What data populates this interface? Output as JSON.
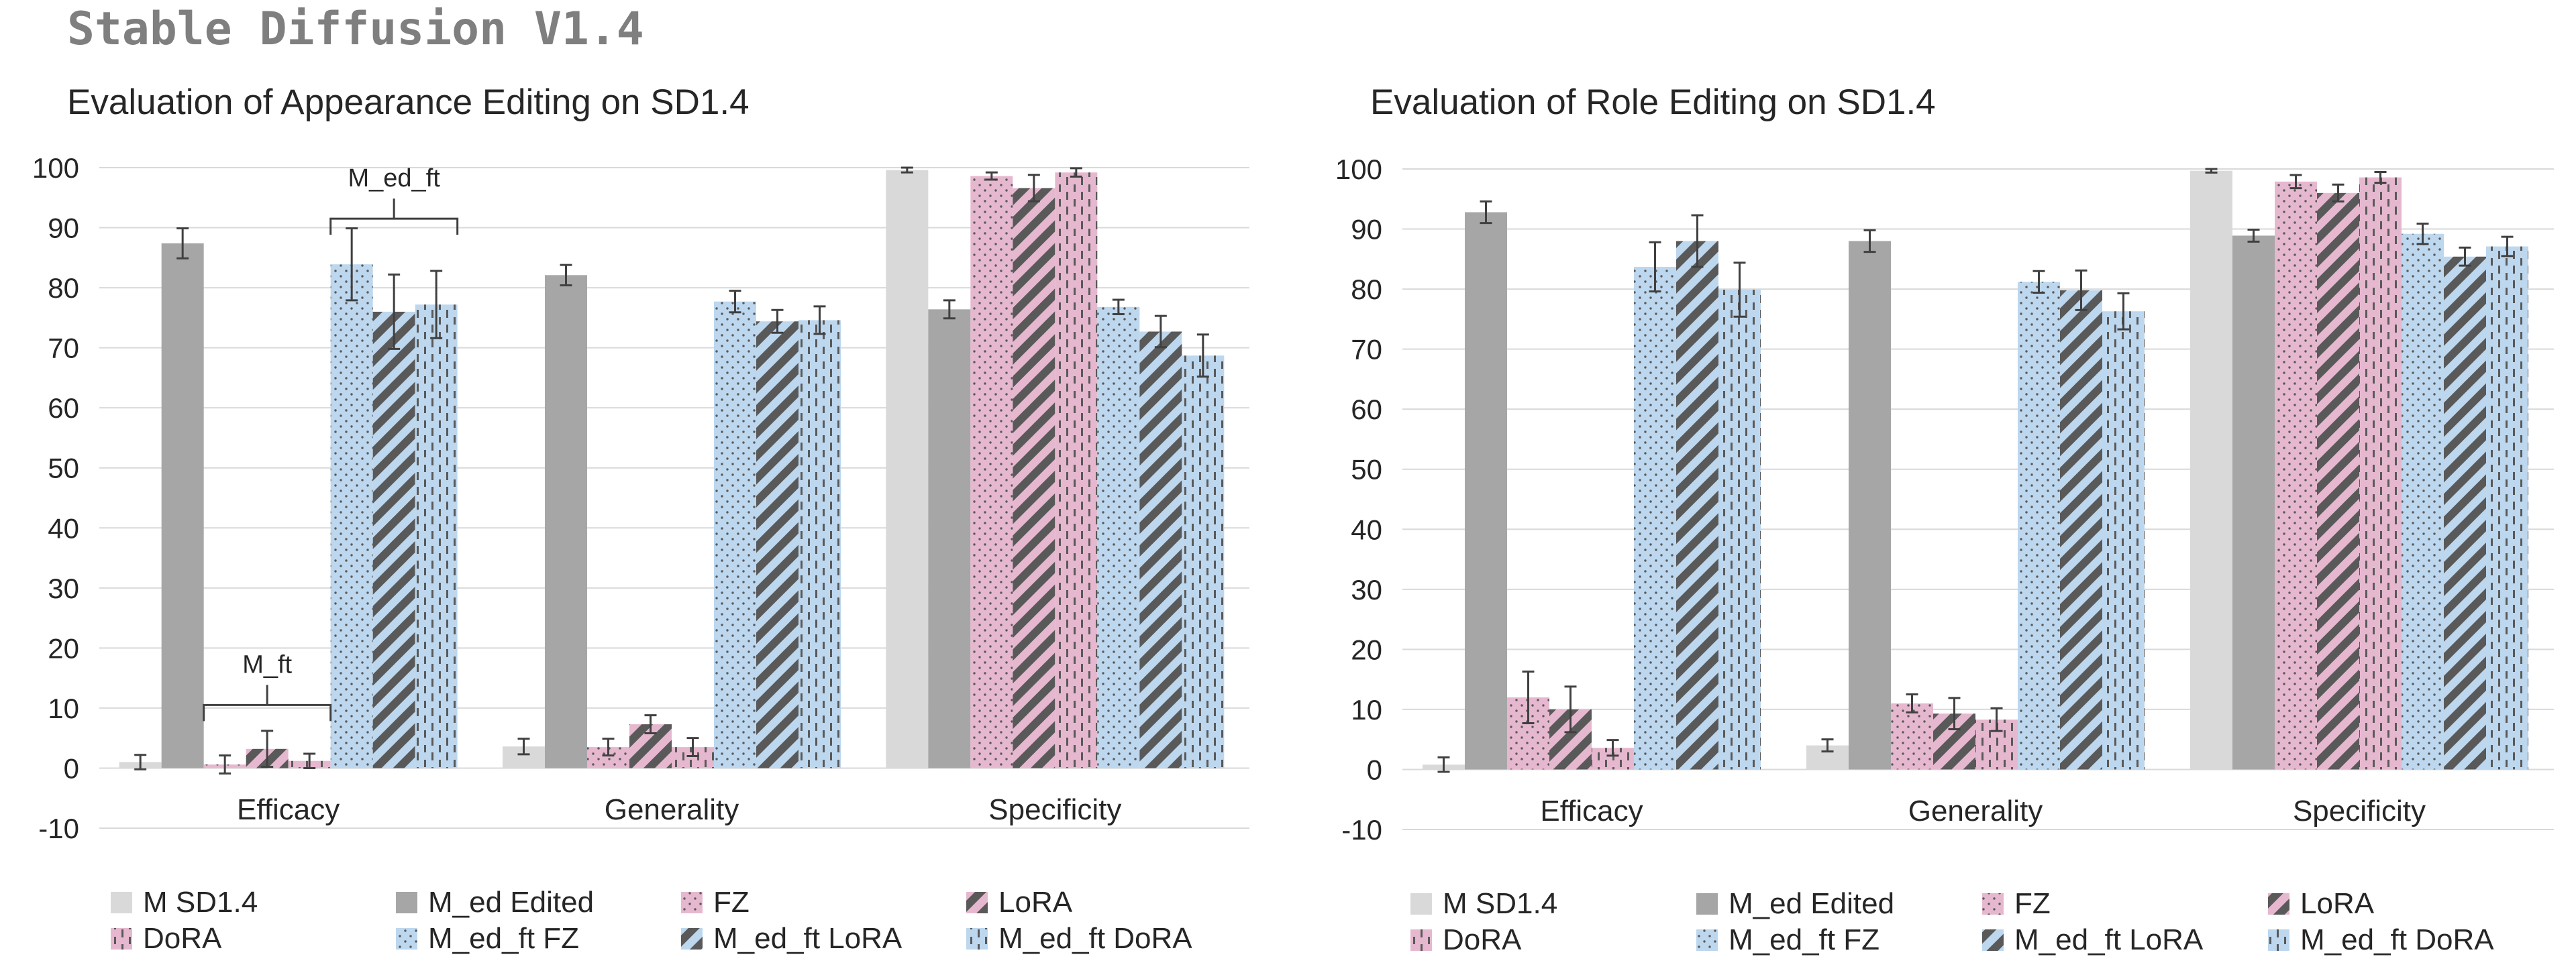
{
  "heading": "Stable Diffusion V1.4",
  "colors": {
    "msd": "#d9d9d9",
    "edited": "#a6a6a6",
    "pink": "#e6b8cf",
    "blue": "#bdd7ee",
    "pattern": "#595959",
    "grid": "#d9d9d9",
    "errbar": "#404040"
  },
  "chart_data": [
    {
      "type": "bar",
      "title": "Evaluation of Appearance Editing on SD1.4",
      "categories": [
        "Efficacy",
        "Generality",
        "Specificity"
      ],
      "ylim": [
        -10,
        100
      ],
      "yticks": [
        "100",
        "90",
        "80",
        "70",
        "60",
        "50",
        "40",
        "30",
        "20",
        "10",
        "0",
        "-10"
      ],
      "series": [
        {
          "name": "M SD1.4",
          "fill": "msd",
          "pattern": "none",
          "values": [
            1.0,
            3.6,
            99.6
          ],
          "errors": [
            1.2,
            1.3,
            0.4
          ]
        },
        {
          "name": "M_ed Edited",
          "fill": "edited",
          "pattern": "none",
          "values": [
            87.4,
            82.1,
            76.4
          ],
          "errors": [
            2.5,
            1.7,
            1.5
          ]
        },
        {
          "name": "FZ",
          "fill": "pink",
          "pattern": "dots",
          "values": [
            0.6,
            3.5,
            98.6
          ],
          "errors": [
            1.5,
            1.4,
            0.6
          ]
        },
        {
          "name": "LoRA",
          "fill": "pink",
          "pattern": "diag",
          "values": [
            3.2,
            7.3,
            96.6
          ],
          "errors": [
            3.0,
            1.5,
            2.2
          ]
        },
        {
          "name": "DoRA",
          "fill": "pink",
          "pattern": "dash",
          "values": [
            1.2,
            3.5,
            99.2
          ],
          "errors": [
            1.2,
            1.5,
            0.7
          ]
        },
        {
          "name": "M_ed_ft FZ",
          "fill": "blue",
          "pattern": "dots",
          "values": [
            83.9,
            77.7,
            76.8
          ],
          "errors": [
            6.0,
            1.8,
            1.2
          ]
        },
        {
          "name": "M_ed_ft LoRA",
          "fill": "blue",
          "pattern": "diag",
          "values": [
            76.0,
            74.4,
            72.7
          ],
          "errors": [
            6.2,
            1.9,
            2.6
          ]
        },
        {
          "name": "M_ed_ft DoRA",
          "fill": "blue",
          "pattern": "dash",
          "values": [
            77.2,
            74.6,
            68.7
          ],
          "errors": [
            5.6,
            2.3,
            3.5
          ]
        }
      ],
      "annotations": [
        {
          "label": "M_ft",
          "category": "Efficacy",
          "from_series": 2,
          "to_series": 4,
          "level": 10.5
        },
        {
          "label": "M_ed_ft",
          "category": "Efficacy",
          "from_series": 5,
          "to_series": 7,
          "level": 91.5
        }
      ],
      "legend": [
        "M SD1.4",
        "M_ed Edited",
        "FZ",
        "LoRA",
        "DoRA",
        "M_ed_ft FZ",
        "M_ed_ft LoRA",
        "M_ed_ft DoRA"
      ],
      "legend_position": "bottom"
    },
    {
      "type": "bar",
      "title": "Evaluation of Role Editing on SD1.4",
      "categories": [
        "Efficacy",
        "Generality",
        "Specificity"
      ],
      "ylim": [
        -10,
        100
      ],
      "yticks": [
        "100",
        "90",
        "80",
        "70",
        "60",
        "50",
        "40",
        "30",
        "20",
        "10",
        "0",
        "-10"
      ],
      "series": [
        {
          "name": "M SD1.4",
          "fill": "msd",
          "pattern": "none",
          "values": [
            0.8,
            4.0,
            99.7
          ],
          "errors": [
            1.2,
            1.0,
            0.3
          ]
        },
        {
          "name": "M_ed Edited",
          "fill": "edited",
          "pattern": "none",
          "values": [
            92.8,
            88.0,
            88.9
          ],
          "errors": [
            1.8,
            1.8,
            1.0
          ]
        },
        {
          "name": "FZ",
          "fill": "pink",
          "pattern": "dots",
          "values": [
            12.0,
            11.0,
            97.9
          ],
          "errors": [
            4.3,
            1.5,
            1.1
          ]
        },
        {
          "name": "LoRA",
          "fill": "pink",
          "pattern": "diag",
          "values": [
            10.0,
            9.3,
            96.0
          ],
          "errors": [
            3.8,
            2.6,
            1.4
          ]
        },
        {
          "name": "DoRA",
          "fill": "pink",
          "pattern": "dash",
          "values": [
            3.6,
            8.3,
            98.6
          ],
          "errors": [
            1.3,
            1.9,
            0.9
          ]
        },
        {
          "name": "M_ed_ft FZ",
          "fill": "blue",
          "pattern": "dots",
          "values": [
            83.7,
            81.2,
            89.2
          ],
          "errors": [
            4.1,
            1.8,
            1.7
          ]
        },
        {
          "name": "M_ed_ft LoRA",
          "fill": "blue",
          "pattern": "diag",
          "values": [
            88.0,
            79.8,
            85.4
          ],
          "errors": [
            4.3,
            3.3,
            1.5
          ]
        },
        {
          "name": "M_ed_ft DoRA",
          "fill": "blue",
          "pattern": "dash",
          "values": [
            79.9,
            76.3,
            87.1
          ],
          "errors": [
            4.5,
            3.0,
            1.6
          ]
        }
      ],
      "annotations": [],
      "legend": [
        "M SD1.4",
        "M_ed Edited",
        "FZ",
        "LoRA",
        "DoRA",
        "M_ed_ft FZ",
        "M_ed_ft LoRA",
        "M_ed_ft DoRA"
      ],
      "legend_position": "bottom"
    }
  ]
}
